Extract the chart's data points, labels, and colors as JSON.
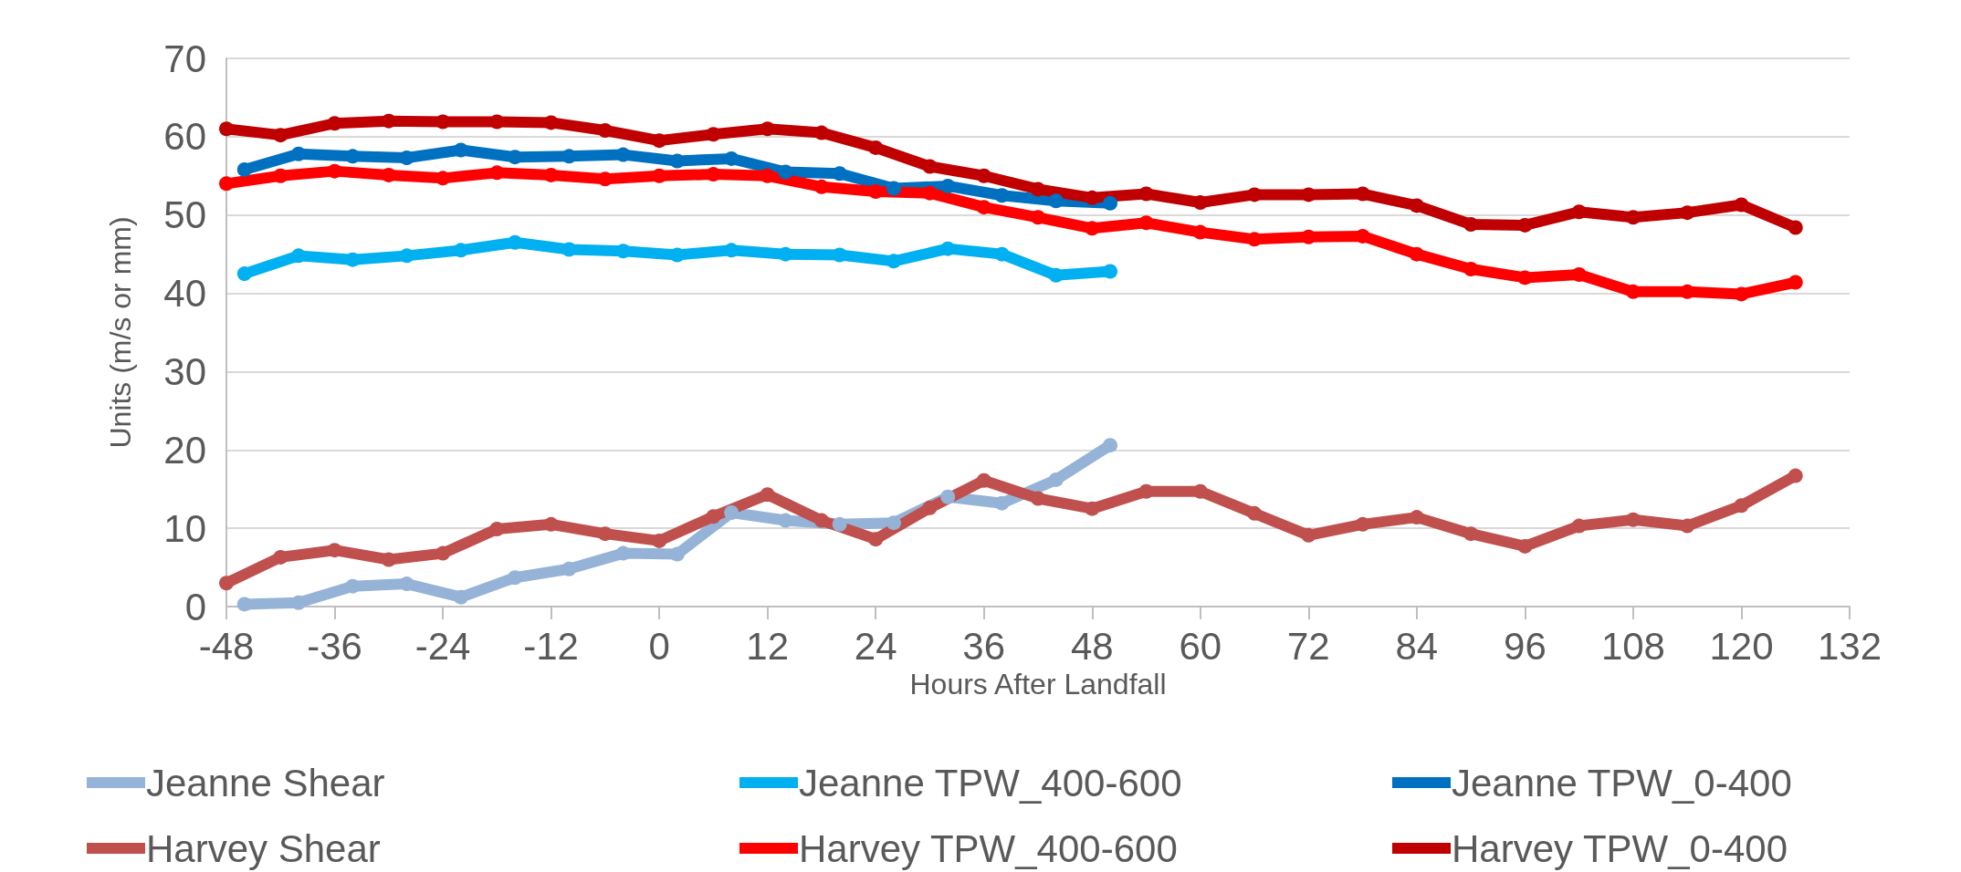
{
  "chart_data": {
    "type": "line",
    "xlabel": "Hours After Landfall",
    "ylabel": "Units (m/s or mm)",
    "xlim": [
      -48,
      132
    ],
    "xticks": [
      -48,
      -36,
      -24,
      -12,
      0,
      12,
      24,
      36,
      48,
      60,
      72,
      84,
      96,
      108,
      120,
      132
    ],
    "ylim": [
      0,
      70
    ],
    "yticks": [
      0,
      10,
      20,
      30,
      40,
      50,
      60,
      70
    ],
    "grid": "y",
    "legend": "bottom",
    "marker": "circle",
    "line_style": "solid",
    "series": [
      {
        "name": "Jeanne Shear",
        "color": "#95b3d7",
        "x": [
          -46,
          -40,
          -34,
          -28,
          -22,
          -16,
          -10,
          -4,
          2,
          8,
          14,
          20,
          26,
          32,
          38,
          44,
          50
        ],
        "values": [
          0.3,
          0.5,
          2.6,
          2.9,
          1.2,
          3.7,
          4.8,
          6.8,
          6.7,
          12,
          11,
          10.5,
          10.7,
          14,
          13.2,
          16.2,
          20.6
        ]
      },
      {
        "name": "Jeanne TPW_400-600",
        "color": "#00b0f0",
        "x": [
          -46,
          -40,
          -34,
          -28,
          -22,
          -16,
          -10,
          -4,
          2,
          8,
          14,
          20,
          26,
          32,
          38,
          44,
          50
        ],
        "values": [
          42.5,
          44.8,
          44.3,
          44.8,
          45.5,
          46.5,
          45.6,
          45.4,
          44.9,
          45.5,
          45,
          44.9,
          44.1,
          45.7,
          45,
          42.3,
          42.8
        ]
      },
      {
        "name": "Jeanne TPW_0-400",
        "color": "#0070c0",
        "x": [
          -46,
          -40,
          -34,
          -28,
          -22,
          -16,
          -10,
          -4,
          2,
          8,
          14,
          20,
          26,
          32,
          38,
          44,
          50
        ],
        "values": [
          55.8,
          57.8,
          57.5,
          57.3,
          58.3,
          57.4,
          57.5,
          57.7,
          56.9,
          57.2,
          55.5,
          55.3,
          53.4,
          53.7,
          52.5,
          51.8,
          51.5
        ]
      },
      {
        "name": "Harvey Shear",
        "color": "#c0504d",
        "x": [
          -48,
          -42,
          -36,
          -30,
          -24,
          -18,
          -12,
          -6,
          0,
          6,
          12,
          18,
          24,
          30,
          36,
          42,
          48,
          54,
          60,
          66,
          72,
          78,
          84,
          90,
          96,
          102,
          108,
          114,
          120,
          126
        ],
        "values": [
          3,
          6.3,
          7.2,
          6,
          6.8,
          9.9,
          10.5,
          9.3,
          8.4,
          11.5,
          14.3,
          11,
          8.6,
          12.6,
          16.1,
          13.8,
          12.5,
          14.7,
          14.7,
          11.9,
          9.1,
          10.5,
          11.4,
          9.3,
          7.7,
          10.3,
          11.1,
          10.3,
          12.9,
          16.7
        ]
      },
      {
        "name": "Harvey TPW_400-600",
        "color": "#ff0000",
        "x": [
          -48,
          -42,
          -36,
          -30,
          -24,
          -18,
          -12,
          -6,
          0,
          6,
          12,
          18,
          24,
          30,
          36,
          42,
          48,
          54,
          60,
          66,
          72,
          78,
          84,
          90,
          96,
          102,
          108,
          114,
          120,
          126
        ],
        "values": [
          54,
          55,
          55.6,
          55.1,
          54.7,
          55.4,
          55.1,
          54.6,
          55,
          55.2,
          55,
          53.6,
          53,
          52.8,
          51,
          49.7,
          48.3,
          49,
          47.8,
          46.9,
          47.2,
          47.3,
          45,
          43.1,
          42,
          42.4,
          40.2,
          40.2,
          39.9,
          41.4
        ]
      },
      {
        "name": "Harvey TPW_0-400",
        "color": "#c00000",
        "x": [
          -48,
          -42,
          -36,
          -30,
          -24,
          -18,
          -12,
          -6,
          0,
          6,
          12,
          18,
          24,
          30,
          36,
          42,
          48,
          54,
          60,
          66,
          72,
          78,
          84,
          90,
          96,
          102,
          108,
          114,
          120,
          126
        ],
        "values": [
          61,
          60.2,
          61.7,
          62,
          61.9,
          61.9,
          61.8,
          60.8,
          59.5,
          60.3,
          61,
          60.5,
          58.6,
          56.2,
          55,
          53.3,
          52.2,
          52.7,
          51.6,
          52.6,
          52.6,
          52.7,
          51.2,
          48.8,
          48.7,
          50.4,
          49.7,
          50.3,
          51.3,
          48.4
        ]
      }
    ]
  }
}
